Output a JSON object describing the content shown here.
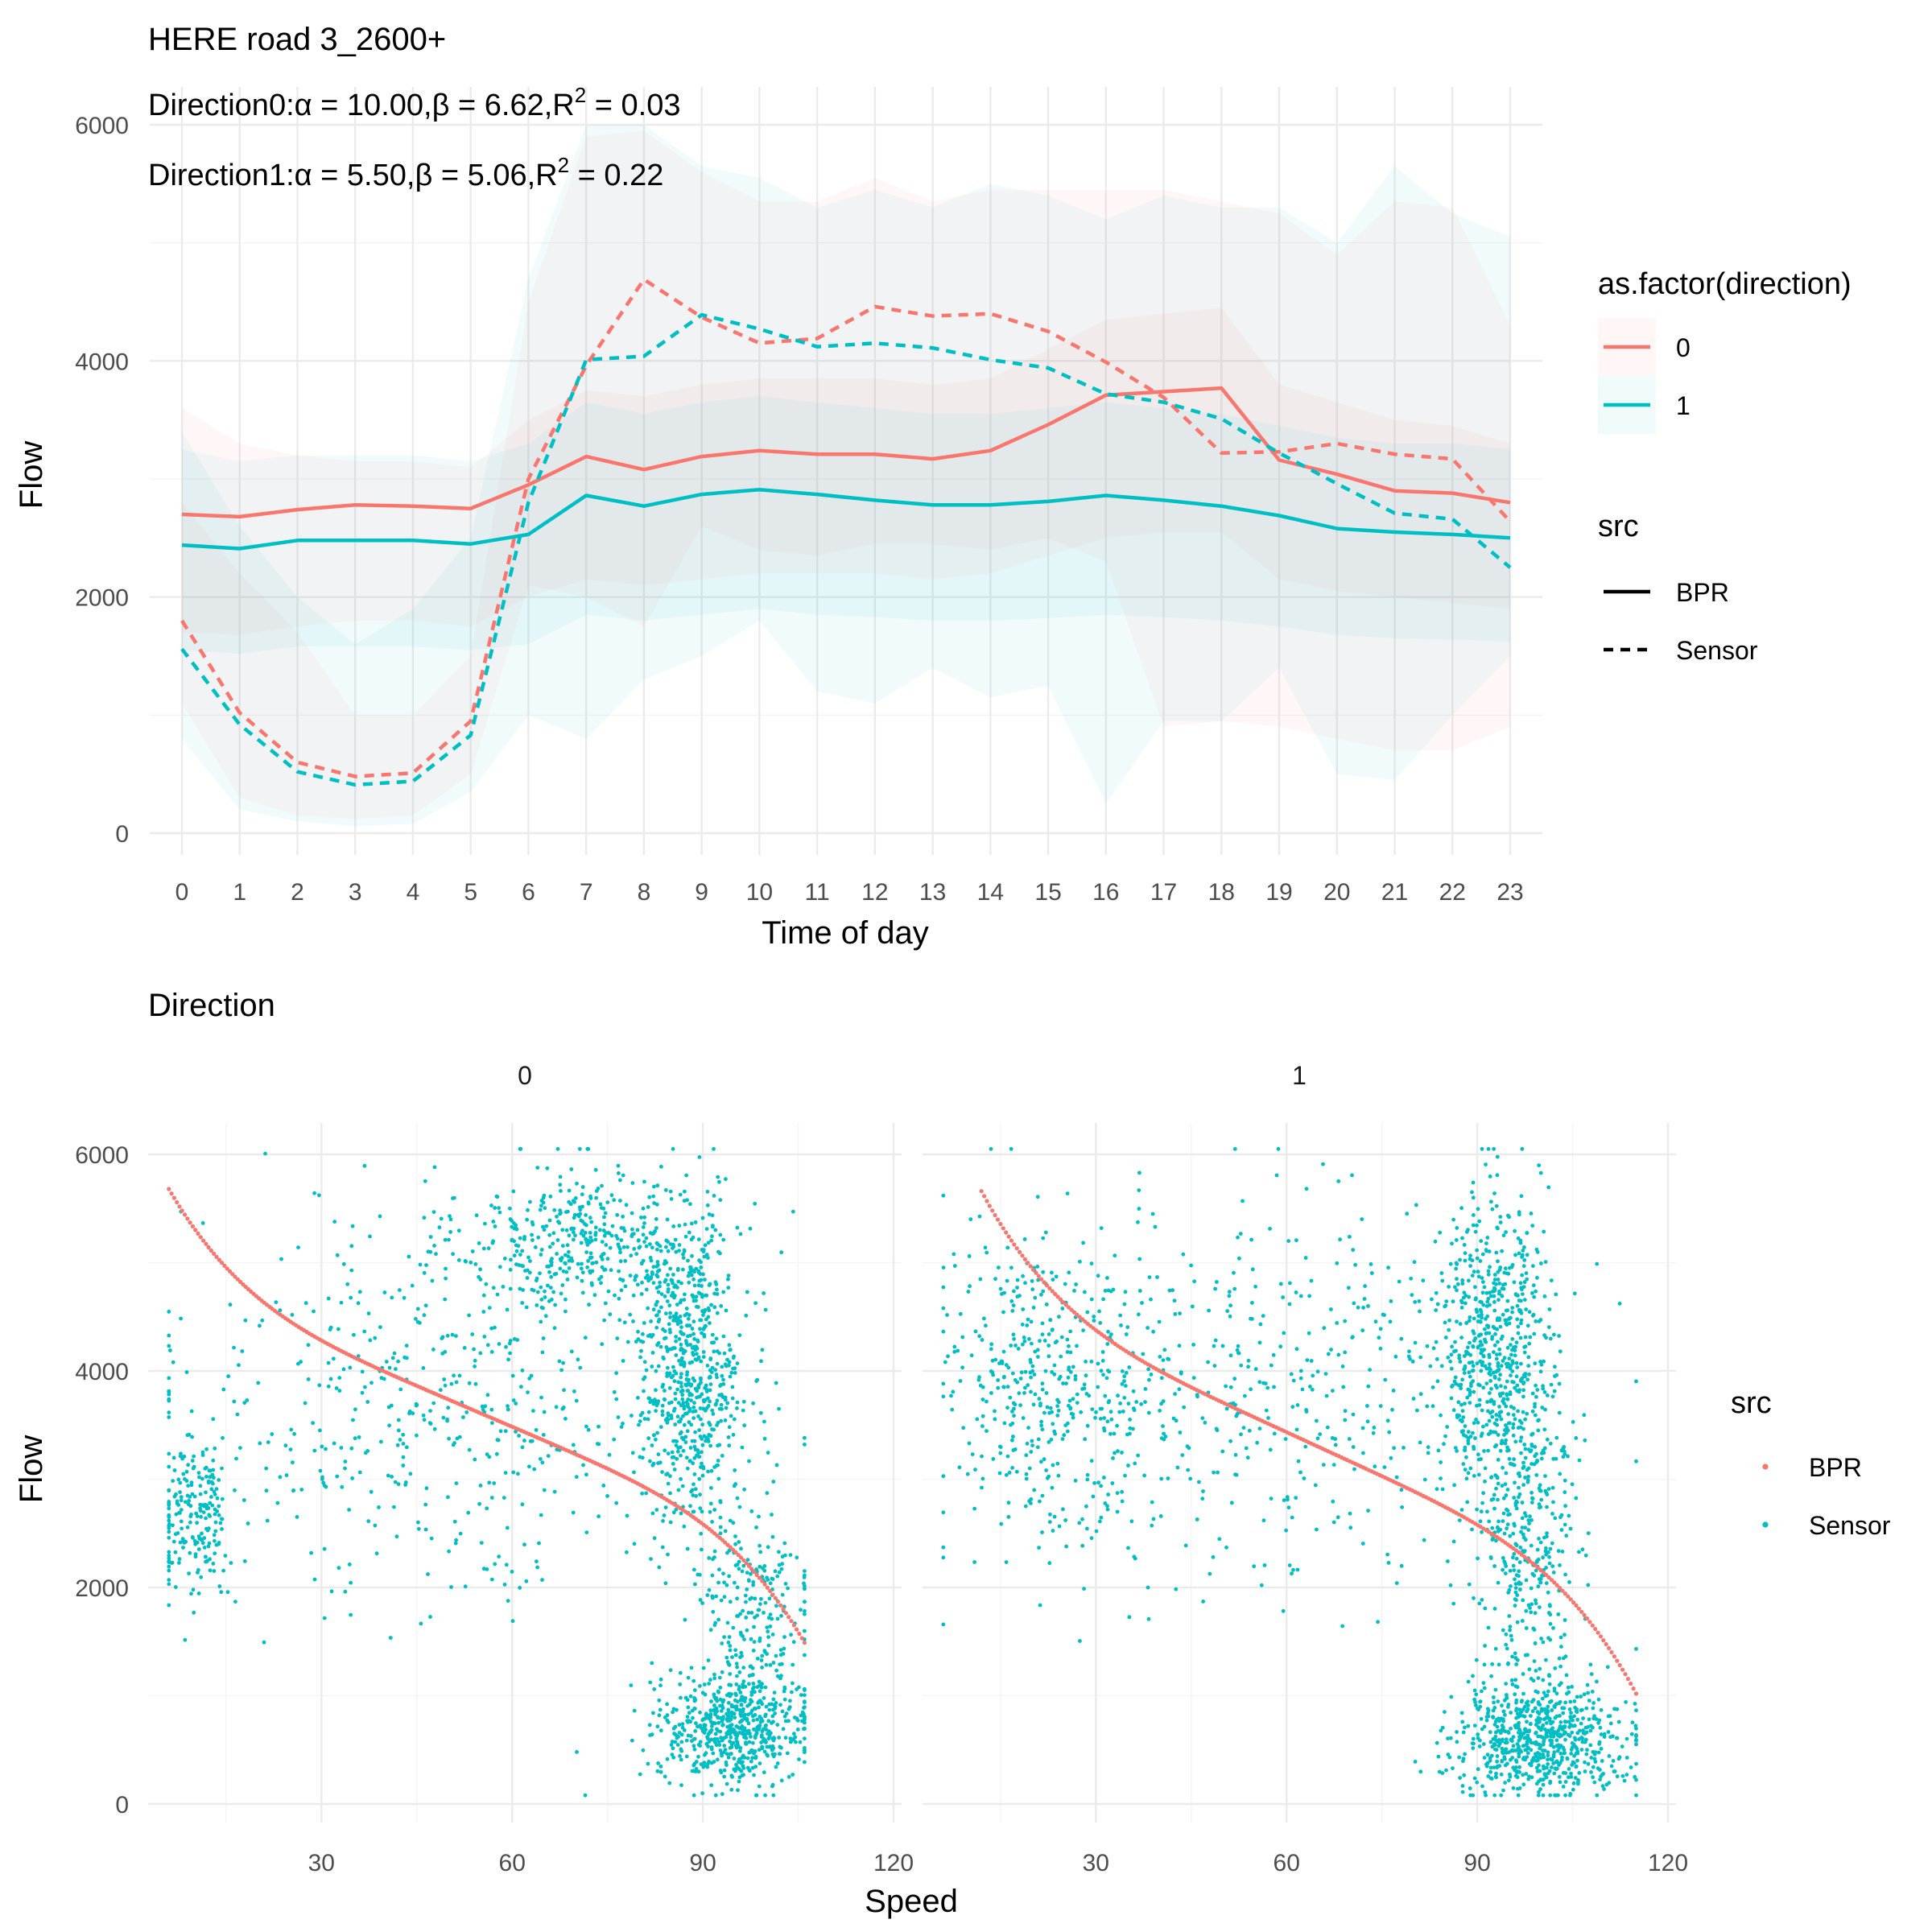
{
  "figure_title": "HERE road 3_2600+",
  "colors": {
    "direction_0": "#F8766D",
    "direction_1": "#00BFC4",
    "bpr_points": "#F8766D",
    "sensor_points": "#00BFC4"
  },
  "annotations": [
    {
      "prefix": "Direction0:",
      "alpha": "10.00",
      "beta": "6.62",
      "r2": "0.03"
    },
    {
      "prefix": "Direction1:",
      "alpha": "5.50",
      "beta": "5.06",
      "r2": "0.22"
    }
  ],
  "symbols": {
    "alpha": "α",
    "beta": "β",
    "eq": " = ",
    "comma": ",",
    "r": "R",
    "sq": "2"
  },
  "legend_top": {
    "color_title": "as.factor(direction)",
    "color_items": [
      "0",
      "1"
    ],
    "linetype_title": "src",
    "linetype_items": [
      "BPR",
      "Sensor"
    ]
  },
  "legend_bottom": {
    "title": "src",
    "items": [
      "BPR",
      "Sensor"
    ]
  },
  "chart_data": [
    {
      "type": "line",
      "xlabel": "Time of day",
      "ylabel": "Flow",
      "x": [
        0,
        1,
        2,
        3,
        4,
        5,
        6,
        7,
        8,
        9,
        10,
        11,
        12,
        13,
        14,
        15,
        16,
        17,
        18,
        19,
        20,
        21,
        22,
        23
      ],
      "xlim": [
        0,
        23
      ],
      "ylim": [
        0,
        6000
      ],
      "yticks": [
        0,
        2000,
        4000,
        6000
      ],
      "grid": true,
      "legend_position": "right",
      "series": [
        {
          "name": "0",
          "src": "BPR",
          "values": [
            2700,
            2680,
            2740,
            2780,
            2770,
            2750,
            2950,
            3190,
            3080,
            3190,
            3240,
            3210,
            3210,
            3170,
            3240,
            3460,
            3710,
            3740,
            3770,
            3160,
            3040,
            2900,
            2880,
            2800
          ],
          "ribbon_lo": [
            1700,
            1680,
            1750,
            1800,
            1800,
            1750,
            2000,
            2150,
            2100,
            2150,
            2200,
            2200,
            2200,
            2150,
            2200,
            2350,
            2500,
            2550,
            2550,
            2150,
            2050,
            2000,
            1950,
            1900
          ],
          "ribbon_hi": [
            3600,
            3300,
            3200,
            3150,
            3150,
            3100,
            3500,
            3750,
            3700,
            3800,
            3850,
            3850,
            3850,
            3800,
            3850,
            4100,
            4350,
            4400,
            4450,
            3800,
            3650,
            3500,
            3450,
            3300
          ]
        },
        {
          "name": "0",
          "src": "Sensor",
          "values": [
            1800,
            1020,
            600,
            480,
            510,
            950,
            3000,
            3960,
            4690,
            4370,
            4150,
            4190,
            4460,
            4380,
            4400,
            4250,
            3990,
            3690,
            3220,
            3230,
            3300,
            3210,
            3170,
            2640
          ],
          "ribbon_lo": [
            1100,
            300,
            150,
            120,
            150,
            500,
            2100,
            2000,
            1750,
            2600,
            2400,
            2350,
            2450,
            2450,
            2400,
            2500,
            2300,
            900,
            950,
            900,
            800,
            700,
            700,
            900
          ],
          "ribbon_hi": [
            2800,
            2200,
            1700,
            1000,
            1000,
            1500,
            4500,
            5900,
            5950,
            5600,
            5350,
            5350,
            5550,
            5350,
            5450,
            5450,
            5450,
            5450,
            5350,
            5250,
            4900,
            5350,
            5300,
            4300
          ]
        },
        {
          "name": "1",
          "src": "BPR",
          "values": [
            2440,
            2410,
            2480,
            2480,
            2480,
            2450,
            2530,
            2860,
            2770,
            2870,
            2910,
            2870,
            2820,
            2780,
            2780,
            2810,
            2860,
            2820,
            2770,
            2690,
            2580,
            2550,
            2530,
            2500
          ],
          "ribbon_lo": [
            1550,
            1520,
            1580,
            1580,
            1580,
            1550,
            1600,
            1850,
            1800,
            1850,
            1900,
            1850,
            1830,
            1800,
            1800,
            1820,
            1850,
            1830,
            1800,
            1750,
            1680,
            1650,
            1640,
            1620
          ],
          "ribbon_hi": [
            3250,
            3150,
            3200,
            3200,
            3200,
            3150,
            3300,
            3650,
            3550,
            3650,
            3700,
            3650,
            3600,
            3550,
            3550,
            3600,
            3650,
            3600,
            3550,
            3450,
            3350,
            3300,
            3300,
            3250
          ]
        },
        {
          "name": "1",
          "src": "Sensor",
          "values": [
            1560,
            920,
            520,
            410,
            440,
            830,
            2800,
            4010,
            4040,
            4390,
            4270,
            4120,
            4150,
            4110,
            4010,
            3940,
            3720,
            3650,
            3510,
            3220,
            2960,
            2710,
            2660,
            2250
          ],
          "ribbon_lo": [
            800,
            200,
            100,
            60,
            80,
            350,
            1000,
            800,
            1300,
            1500,
            1800,
            1200,
            1100,
            1400,
            1150,
            1250,
            250,
            950,
            950,
            1400,
            500,
            450,
            1000,
            1500
          ],
          "ribbon_hi": [
            3400,
            2600,
            2000,
            1600,
            1900,
            2500,
            4700,
            6000,
            6000,
            5650,
            5550,
            5300,
            5450,
            5300,
            5500,
            5400,
            5200,
            5400,
            5300,
            5300,
            5000,
            5650,
            5250,
            5050
          ]
        }
      ]
    },
    {
      "type": "scatter",
      "title": "Direction",
      "facets": [
        "0",
        "1"
      ],
      "xlabel": "Speed",
      "ylabel": "Flow",
      "xlim": [
        4,
        120
      ],
      "xticks": [
        30,
        60,
        90,
        120
      ],
      "ylim": [
        0,
        6000
      ],
      "yticks": [
        0,
        2000,
        4000,
        6000
      ],
      "grid": true,
      "legend_position": "right",
      "bpr_curves": [
        {
          "facet": "0",
          "speed_range": [
            6,
            106
          ],
          "flow_range": [
            5680,
            1490
          ],
          "alpha": 10.0,
          "beta": 6.62
        },
        {
          "facet": "1",
          "speed_range": [
            12,
            115
          ],
          "flow_range": [
            5660,
            1020
          ],
          "alpha": 5.5,
          "beta": 5.06
        }
      ],
      "sensor_clusters": [
        {
          "facet": "0",
          "center": [
            72,
            5200
          ],
          "spread": [
            10,
            350
          ],
          "count": 420
        },
        {
          "facet": "0",
          "center": [
            88,
            4000
          ],
          "spread": [
            4,
            700
          ],
          "count": 650
        },
        {
          "facet": "0",
          "center": [
            95,
            700
          ],
          "spread": [
            6,
            250
          ],
          "count": 620
        },
        {
          "facet": "0",
          "center": [
            98,
            1800
          ],
          "spread": [
            5,
            500
          ],
          "count": 220
        },
        {
          "facet": "0",
          "center": [
            10,
            2650
          ],
          "spread": [
            3,
            350
          ],
          "count": 200
        },
        {
          "facet": "0",
          "center": [
            50,
            3700
          ],
          "spread": [
            22,
            900
          ],
          "count": 520
        },
        {
          "facet": "1",
          "center": [
            92,
            4300
          ],
          "spread": [
            4,
            700
          ],
          "count": 560
        },
        {
          "facet": "1",
          "center": [
            98,
            2600
          ],
          "spread": [
            4,
            800
          ],
          "count": 420
        },
        {
          "facet": "1",
          "center": [
            100,
            600
          ],
          "spread": [
            7,
            250
          ],
          "count": 700
        },
        {
          "facet": "1",
          "center": [
            22,
            3900
          ],
          "spread": [
            8,
            700
          ],
          "count": 350
        },
        {
          "facet": "1",
          "center": [
            55,
            3800
          ],
          "spread": [
            22,
            900
          ],
          "count": 500
        }
      ]
    }
  ]
}
